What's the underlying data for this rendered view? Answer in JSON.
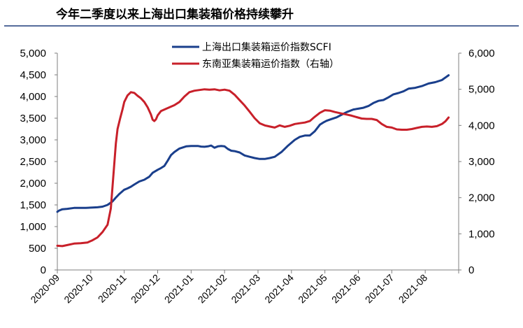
{
  "chart_data": {
    "type": "line",
    "title": "今年二季度以来上海出口集装箱价格持续攀升",
    "x_categories": [
      "2020-09",
      "2020-10",
      "2020-11",
      "2020-12",
      "2021-01",
      "2021-02",
      "2021-03",
      "2021-04",
      "2021-05",
      "2021-06",
      "2021-07",
      "2021-08"
    ],
    "y_left": {
      "min": 0,
      "max": 5000,
      "step": 500,
      "ticks": [
        "0",
        "500",
        "1,000",
        "1,500",
        "2,000",
        "2,500",
        "3,000",
        "3,500",
        "4,000",
        "4,500",
        "5,000"
      ]
    },
    "y_right": {
      "min": 0,
      "max": 6000,
      "step": 1000,
      "ticks": [
        "0",
        "1,000",
        "2,000",
        "3,000",
        "4,000",
        "5,000",
        "6,000"
      ]
    },
    "series": [
      {
        "name": "上海出口集装箱运价指数SCFI",
        "axis": "left",
        "color": "#1a3f8c",
        "x": [
          0,
          0.05,
          0.15,
          0.3,
          0.5,
          0.7,
          0.85,
          1.05,
          1.2,
          1.35,
          1.5,
          1.65,
          1.75,
          1.85,
          2.0,
          2.1,
          2.2,
          2.3,
          2.45,
          2.6,
          2.75,
          2.85,
          3.0,
          3.1,
          3.2,
          3.3,
          3.4,
          3.5,
          3.65,
          3.85,
          4.0,
          4.1,
          4.2,
          4.3,
          4.4,
          4.5,
          4.6,
          4.7,
          4.8,
          4.9,
          5.0,
          5.1,
          5.2,
          5.3,
          5.45,
          5.6,
          5.75,
          5.9,
          6.05,
          6.2,
          6.35,
          6.5,
          6.7,
          6.9,
          7.1,
          7.25,
          7.4,
          7.55,
          7.7,
          7.85,
          7.95,
          8.05,
          8.2,
          8.35,
          8.5,
          8.65,
          8.85,
          9.0,
          9.15,
          9.3,
          9.45,
          9.6,
          9.75,
          9.9,
          10.05,
          10.2,
          10.35,
          10.5,
          10.7,
          10.9,
          11.1,
          11.3,
          11.5,
          11.7
        ],
        "y": [
          1340,
          1370,
          1400,
          1410,
          1430,
          1430,
          1430,
          1440,
          1445,
          1460,
          1500,
          1580,
          1670,
          1750,
          1850,
          1880,
          1920,
          1970,
          2040,
          2080,
          2150,
          2240,
          2310,
          2350,
          2400,
          2520,
          2650,
          2720,
          2800,
          2850,
          2860,
          2860,
          2860,
          2845,
          2840,
          2850,
          2870,
          2820,
          2850,
          2860,
          2850,
          2790,
          2750,
          2740,
          2710,
          2640,
          2610,
          2580,
          2560,
          2560,
          2580,
          2610,
          2720,
          2870,
          3000,
          3070,
          3100,
          3100,
          3200,
          3350,
          3400,
          3440,
          3480,
          3520,
          3580,
          3640,
          3700,
          3720,
          3740,
          3780,
          3850,
          3900,
          3920,
          3980,
          4050,
          4080,
          4120,
          4180,
          4200,
          4240,
          4300,
          4330,
          4380,
          4490
        ]
      },
      {
        "name": "东南亚集装箱运价指数（右轴）",
        "axis": "right",
        "color": "#c8202a",
        "x": [
          0,
          0.15,
          0.3,
          0.5,
          0.7,
          0.9,
          1.05,
          1.2,
          1.35,
          1.5,
          1.6,
          1.7,
          1.75,
          1.8,
          1.88,
          1.95,
          2.0,
          2.1,
          2.2,
          2.3,
          2.4,
          2.5,
          2.6,
          2.7,
          2.8,
          2.85,
          2.9,
          2.95,
          3.0,
          3.1,
          3.2,
          3.35,
          3.5,
          3.65,
          3.8,
          3.95,
          4.1,
          4.25,
          4.4,
          4.55,
          4.7,
          4.85,
          5.0,
          5.15,
          5.3,
          5.45,
          5.6,
          5.75,
          5.9,
          6.05,
          6.2,
          6.35,
          6.5,
          6.65,
          6.8,
          6.95,
          7.1,
          7.25,
          7.4,
          7.55,
          7.7,
          7.85,
          8.0,
          8.15,
          8.3,
          8.5,
          8.65,
          8.8,
          8.95,
          9.1,
          9.25,
          9.4,
          9.55,
          9.7,
          9.85,
          10.0,
          10.15,
          10.3,
          10.45,
          10.6,
          10.75,
          10.9,
          11.05,
          11.2,
          11.35,
          11.5,
          11.6,
          11.7
        ],
        "y": [
          670,
          660,
          690,
          730,
          740,
          760,
          820,
          900,
          1050,
          1250,
          1700,
          2900,
          3500,
          3900,
          4200,
          4450,
          4650,
          4830,
          4920,
          4900,
          4820,
          4750,
          4650,
          4500,
          4300,
          4160,
          4120,
          4170,
          4280,
          4400,
          4440,
          4500,
          4560,
          4650,
          4800,
          4920,
          4960,
          4980,
          5000,
          4990,
          5000,
          4970,
          4990,
          4960,
          4850,
          4700,
          4550,
          4380,
          4200,
          4060,
          4000,
          3970,
          3940,
          4000,
          3960,
          3990,
          4040,
          4060,
          4080,
          4120,
          4240,
          4350,
          4420,
          4410,
          4370,
          4330,
          4300,
          4270,
          4230,
          4190,
          4180,
          4180,
          4150,
          4040,
          3960,
          3940,
          3890,
          3880,
          3880,
          3900,
          3930,
          3960,
          3970,
          3960,
          3980,
          4040,
          4110,
          4220
        ]
      }
    ]
  }
}
